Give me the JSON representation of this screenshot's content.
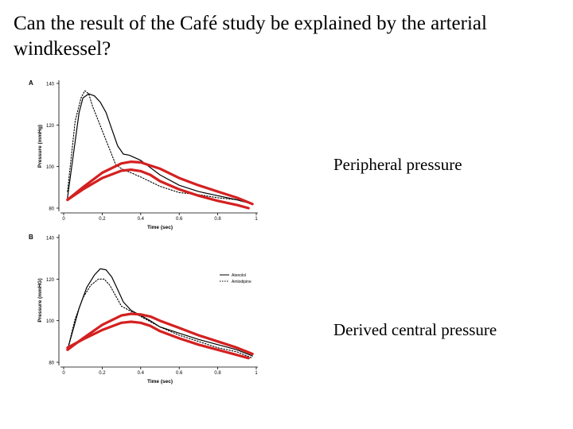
{
  "slide": {
    "title": "Can the result of the Café study be explained by the arterial windkessel?",
    "label_peripheral": "Peripheral pressure",
    "label_central": "Derived central pressure"
  },
  "colors": {
    "measured": "#000000",
    "derived_overlay": "#d42020"
  },
  "chart_data": [
    {
      "type": "line",
      "panel": "A",
      "xlabel": "Time (sec)",
      "ylabel": "Pressure (mmHg)",
      "xlim": [
        0,
        1
      ],
      "ylim": [
        80,
        140
      ],
      "xticks": [
        "0",
        "0.2",
        "0.4",
        "0.6",
        "0.8",
        "1"
      ],
      "yticks": [
        "80",
        "100",
        "120",
        "140"
      ],
      "series": [
        {
          "style": "solid",
          "color": "#000000",
          "x": [
            0.02,
            0.08,
            0.1,
            0.13,
            0.16,
            0.19,
            0.22,
            0.25,
            0.28,
            0.31,
            0.34,
            0.4,
            0.5,
            0.6,
            0.7,
            0.8,
            0.9,
            0.98
          ],
          "y": [
            85,
            126,
            133,
            135,
            134,
            131,
            126,
            118,
            110,
            106,
            105.5,
            103,
            96,
            91,
            88,
            86,
            84,
            82
          ]
        },
        {
          "style": "dotted",
          "color": "#000000",
          "x": [
            0.02,
            0.06,
            0.09,
            0.11,
            0.13,
            0.15,
            0.18,
            0.21,
            0.24,
            0.27,
            0.3,
            0.35,
            0.4,
            0.5,
            0.6,
            0.7,
            0.8,
            0.9,
            0.98
          ],
          "y": [
            88,
            122,
            133,
            136.5,
            135,
            129,
            122,
            115,
            108,
            101,
            99,
            97,
            95,
            90.5,
            87.5,
            86.5,
            85,
            84,
            82
          ]
        },
        {
          "style": "thick",
          "color": "#d42020",
          "x": [
            0.02,
            0.1,
            0.2,
            0.3,
            0.35,
            0.4,
            0.45,
            0.5,
            0.6,
            0.7,
            0.8,
            0.9,
            0.98
          ],
          "y": [
            84,
            90,
            97,
            101.5,
            102.3,
            102,
            100.5,
            99,
            94.5,
            91,
            88,
            85,
            82
          ]
        },
        {
          "style": "thick",
          "color": "#d42020",
          "x": [
            0.02,
            0.1,
            0.2,
            0.3,
            0.35,
            0.4,
            0.45,
            0.5,
            0.6,
            0.7,
            0.8,
            0.9,
            0.96
          ],
          "y": [
            84,
            89,
            94.5,
            98,
            98.5,
            97.8,
            96,
            93,
            89,
            86,
            83.5,
            81.5,
            80
          ]
        }
      ]
    },
    {
      "type": "line",
      "panel": "B",
      "xlabel": "Time (sec)",
      "ylabel": "Pressure (mmHG)",
      "xlim": [
        0,
        1
      ],
      "ylim": [
        80,
        140
      ],
      "xticks": [
        "0",
        "0.2",
        "0.4",
        "0.6",
        "0.8",
        "1"
      ],
      "yticks": [
        "80",
        "100",
        "120",
        "140"
      ],
      "legend": {
        "position": "top-right",
        "entries": [
          {
            "name": "Atenolol",
            "style": "solid"
          },
          {
            "name": "Amlodipine",
            "style": "dotted"
          }
        ]
      },
      "series": [
        {
          "name": "Atenolol",
          "style": "solid",
          "color": "#000000",
          "x": [
            0.02,
            0.08,
            0.12,
            0.16,
            0.19,
            0.22,
            0.25,
            0.28,
            0.31,
            0.35,
            0.4,
            0.45,
            0.5,
            0.6,
            0.7,
            0.8,
            0.9,
            0.98
          ],
          "y": [
            86,
            106,
            116,
            122,
            125,
            124.5,
            121,
            115,
            109,
            105,
            102.5,
            100,
            97,
            94,
            91,
            88.5,
            86,
            83
          ]
        },
        {
          "name": "Amlodipine",
          "style": "dotted",
          "color": "#000000",
          "x": [
            0.02,
            0.06,
            0.1,
            0.14,
            0.18,
            0.21,
            0.24,
            0.27,
            0.3,
            0.35,
            0.4,
            0.5,
            0.6,
            0.7,
            0.8,
            0.9,
            0.98
          ],
          "y": [
            86,
            101,
            111,
            117,
            120,
            120,
            117,
            112,
            107,
            104.5,
            102,
            97,
            93,
            90,
            87,
            85,
            82
          ]
        },
        {
          "style": "thick",
          "color": "#d42020",
          "x": [
            0.02,
            0.1,
            0.2,
            0.3,
            0.35,
            0.4,
            0.45,
            0.5,
            0.6,
            0.7,
            0.8,
            0.9,
            0.98
          ],
          "y": [
            86,
            91.5,
            98,
            102.5,
            103.3,
            103,
            102,
            100,
            96.5,
            93,
            90,
            87,
            84
          ]
        },
        {
          "style": "thick",
          "color": "#d42020",
          "x": [
            0.02,
            0.1,
            0.2,
            0.3,
            0.35,
            0.4,
            0.45,
            0.5,
            0.6,
            0.7,
            0.8,
            0.9,
            0.96
          ],
          "y": [
            87,
            91,
            95.5,
            99,
            99.5,
            99,
            97.5,
            95,
            91.5,
            88.5,
            86,
            83.5,
            82
          ]
        }
      ]
    }
  ]
}
